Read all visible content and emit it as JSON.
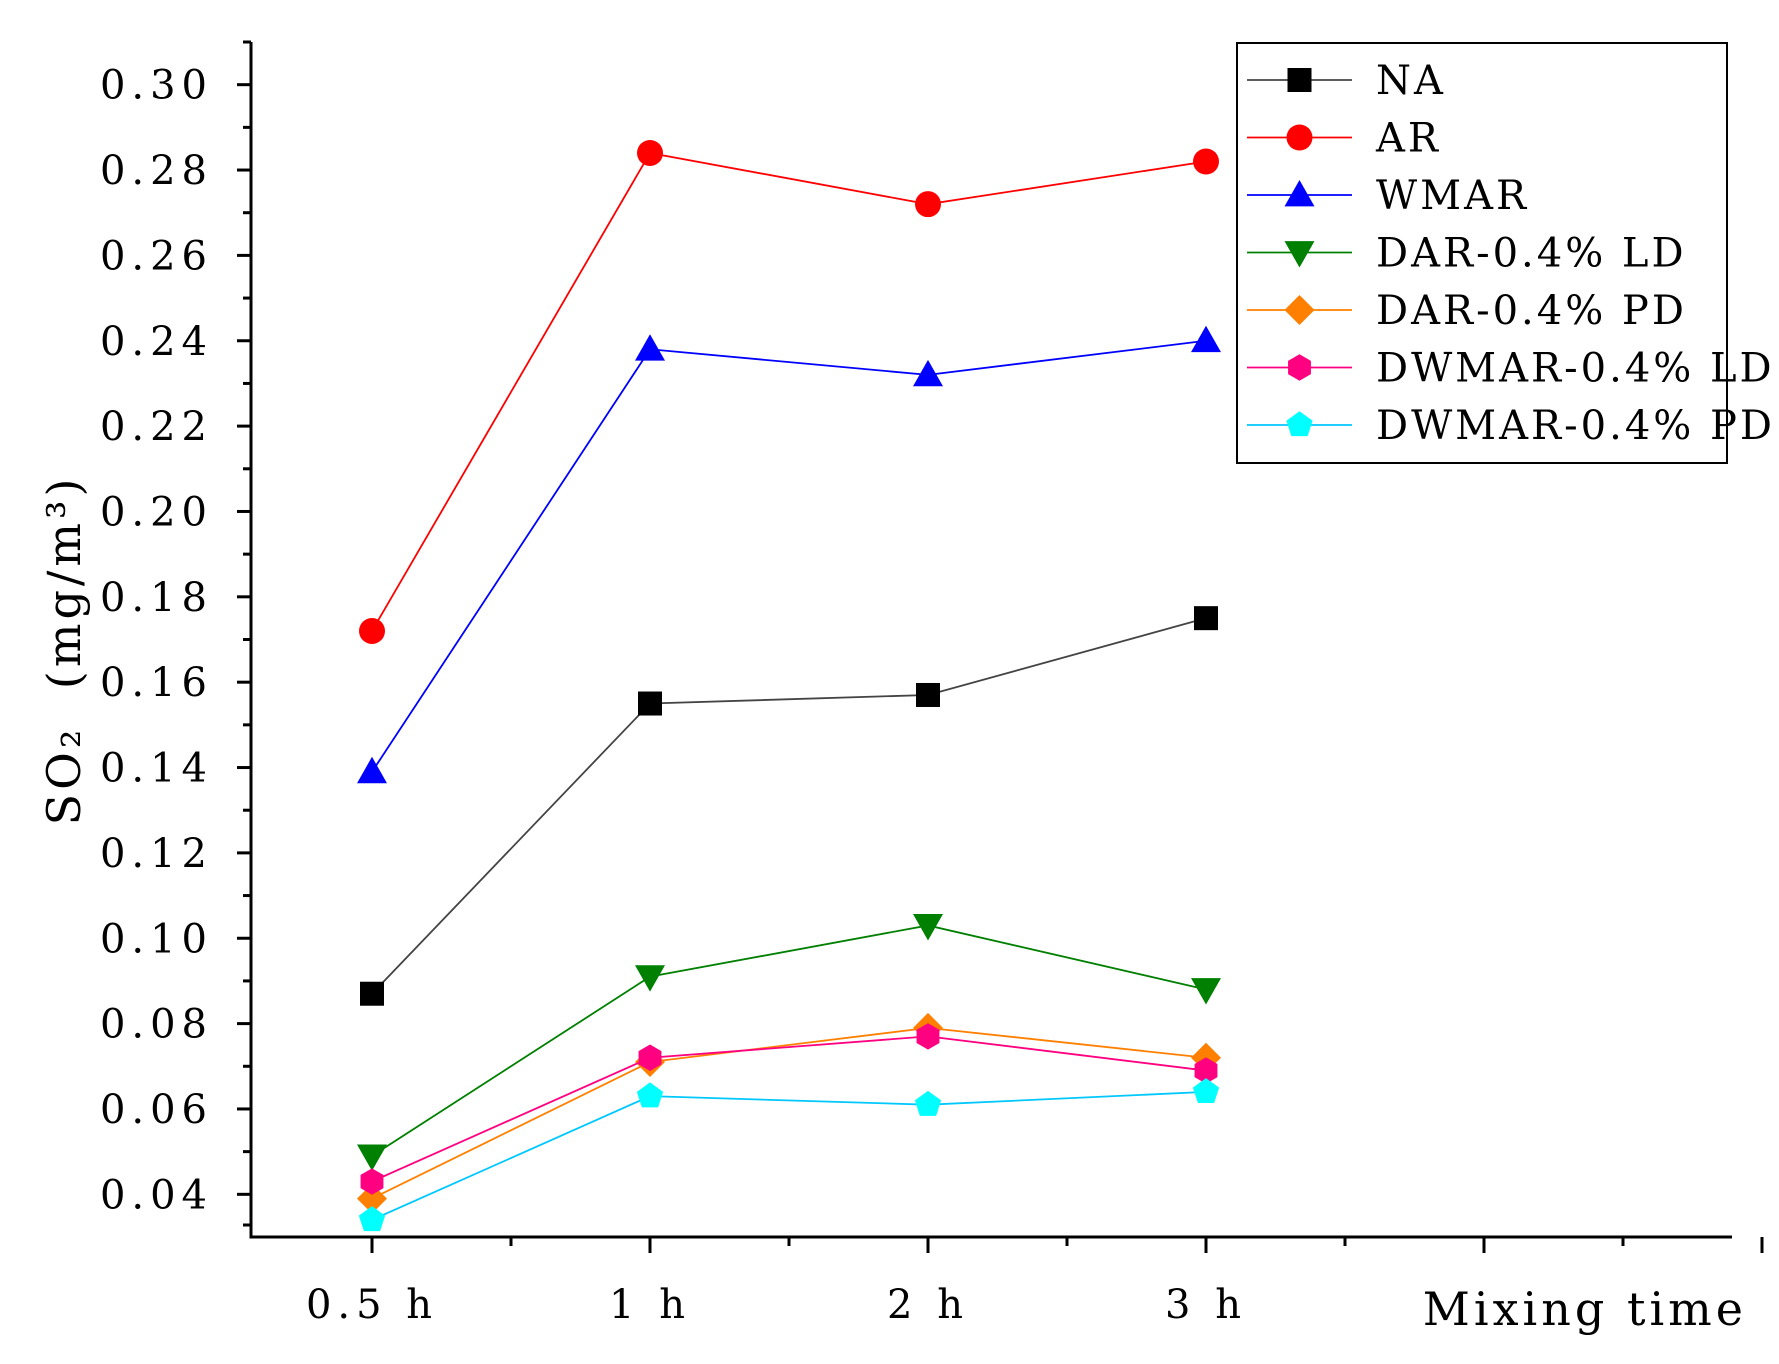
{
  "chart_data": {
    "type": "line",
    "categories": [
      "0.5 h",
      "1 h",
      "2 h",
      "3 h"
    ],
    "xlabel": "Mixing time",
    "ylabel_main": "SO₂",
    "ylabel_unit": "(mg/m³)",
    "ylim": [
      0.03,
      0.31
    ],
    "yticks": [
      {
        "value": 0.04,
        "label": "0.04"
      },
      {
        "value": 0.06,
        "label": "0.06"
      },
      {
        "value": 0.08,
        "label": "0.08"
      },
      {
        "value": 0.1,
        "label": "0.10"
      },
      {
        "value": 0.12,
        "label": "0.12"
      },
      {
        "value": 0.14,
        "label": "0.14"
      },
      {
        "value": 0.16,
        "label": "0.16"
      },
      {
        "value": 0.18,
        "label": "0.18"
      },
      {
        "value": 0.2,
        "label": "0.20"
      },
      {
        "value": 0.22,
        "label": "0.22"
      },
      {
        "value": 0.24,
        "label": "0.24"
      },
      {
        "value": 0.26,
        "label": "0.26"
      },
      {
        "value": 0.28,
        "label": "0.28"
      },
      {
        "value": 0.3,
        "label": "0.30"
      }
    ],
    "grid": false,
    "legend_position": "top-right",
    "series": [
      {
        "name": "NA",
        "color": "#000000",
        "line_color": "#444444",
        "marker": "square",
        "values": [
          0.087,
          0.155,
          0.157,
          0.175
        ]
      },
      {
        "name": "AR",
        "color": "#ff0000",
        "line_color": "#ff0000",
        "marker": "circle",
        "values": [
          0.172,
          0.284,
          0.272,
          0.282
        ]
      },
      {
        "name": "WMAR",
        "color": "#0000ff",
        "line_color": "#0000ff",
        "marker": "triangle-up",
        "values": [
          0.139,
          0.238,
          0.232,
          0.24
        ]
      },
      {
        "name": "DAR-0.4% LD",
        "color": "#008000",
        "line_color": "#008000",
        "marker": "triangle-down",
        "values": [
          0.049,
          0.091,
          0.103,
          0.088
        ]
      },
      {
        "name": "DAR-0.4% PD",
        "color": "#ff8000",
        "line_color": "#ff8000",
        "marker": "diamond",
        "values": [
          0.039,
          0.071,
          0.079,
          0.072
        ]
      },
      {
        "name": "DWMAR-0.4% LD",
        "color": "#ff0080",
        "line_color": "#ff0080",
        "marker": "hexagon",
        "values": [
          0.043,
          0.072,
          0.077,
          0.069
        ]
      },
      {
        "name": "DWMAR-0.4% PD",
        "color": "#00ffff",
        "line_color": "#00c8ff",
        "marker": "pentagon",
        "values": [
          0.034,
          0.063,
          0.061,
          0.064
        ]
      }
    ]
  }
}
